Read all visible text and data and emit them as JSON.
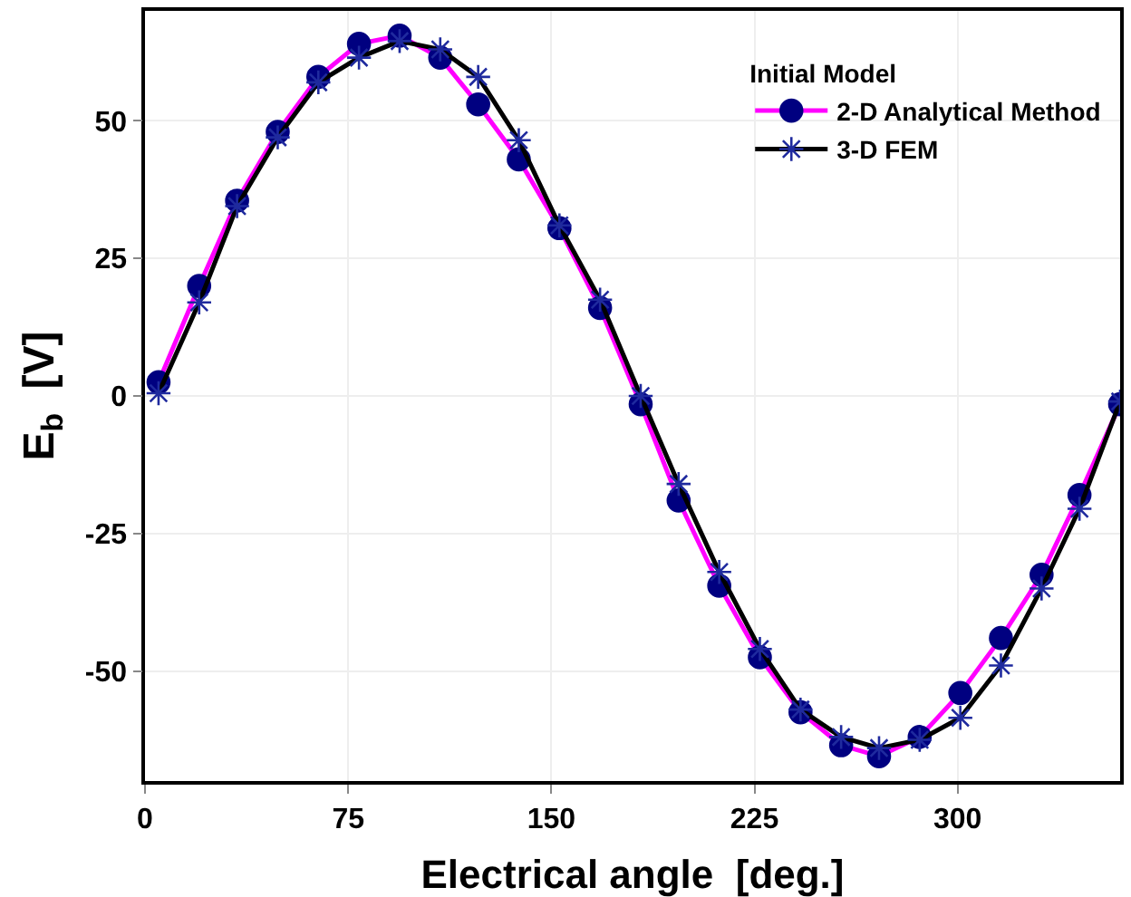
{
  "chart_data": {
    "type": "line",
    "xlabel": "Electrical angle  [deg.]",
    "ylabel": "E$_{b}$  [V]",
    "legend_title": "Initial Model",
    "x": [
      5,
      20,
      34,
      49,
      64,
      79,
      94,
      109,
      123,
      138,
      153,
      168,
      183,
      197,
      212,
      227,
      242,
      257,
      271,
      286,
      301,
      316,
      331,
      345,
      360
    ],
    "series": [
      {
        "name": "2-D Analytical Method",
        "color": "#ff00ff",
        "marker": "circle",
        "colors": [
          "#000080",
          "#000080",
          "#000080",
          "#000080",
          "#000080",
          "#000080",
          "#000080",
          "#000080",
          "#000080",
          "#000080",
          "#000080",
          "#000080",
          "#000080",
          "#000080",
          "#000080",
          "#000080",
          "#000080",
          "#000080",
          "#000080",
          "#000080",
          "#000080",
          "#000080",
          "#000080",
          "#000080",
          "#000080"
        ],
        "values": [
          2.5,
          20,
          35.5,
          48,
          58,
          64,
          65.5,
          61.5,
          53,
          43,
          30.5,
          16,
          -1.5,
          -19,
          -34.5,
          -47.5,
          -57.5,
          -63.5,
          -65.5,
          -62,
          -54,
          -44,
          -32.5,
          -18,
          -1.5
        ]
      },
      {
        "name": "3-D FEM",
        "color": "#000000",
        "marker": "cross",
        "colors": [
          "#1f2a9e",
          "#1f2a9e",
          "#1f2a9e",
          "#1f2a9e",
          "#1f2a9e",
          "#1f2a9e",
          "#1f2a9e",
          "#1f2a9e",
          "#1f2a9e",
          "#1f2a9e",
          "#1f2a9e",
          "#1f2a9e",
          "#1f2a9e",
          "#1f2a9e",
          "#1f2a9e",
          "#1f2a9e",
          "#1f2a9e",
          "#1f2a9e",
          "#1f2a9e",
          "#1f2a9e",
          "#1f2a9e",
          "#1f2a9e",
          "#1f2a9e",
          "#1f2a9e",
          "#1f2a9e"
        ],
        "values": [
          0.5,
          17,
          34.5,
          47,
          57,
          61.5,
          64.5,
          63,
          58,
          46.5,
          31,
          17.5,
          0,
          -16,
          -32,
          -46,
          -57,
          -62,
          -64,
          -62.5,
          -58.5,
          -49,
          -35,
          -20.5,
          -1
        ]
      }
    ],
    "xlim": [
      0,
      360
    ],
    "xticks": [
      0,
      75,
      150,
      225,
      300
    ],
    "ylim": [
      -70,
      70
    ],
    "yticks": [
      -50,
      -25,
      0,
      25,
      50
    ],
    "grid": true,
    "legend": "top right",
    "line_style": "solid"
  }
}
